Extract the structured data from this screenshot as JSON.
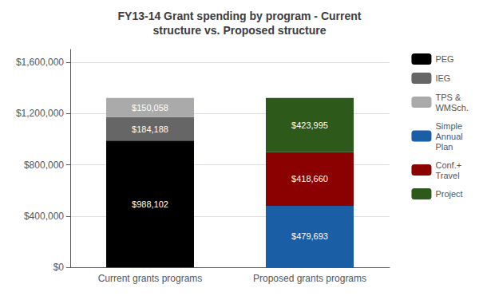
{
  "chart_data": {
    "type": "bar",
    "title": "FY13-14 Grant spending by program - Current\nstructure vs. Proposed structure",
    "categories": [
      "Current grants programs",
      "Proposed grants programs"
    ],
    "stacked": true,
    "data_labels": true,
    "grid": true,
    "legend": "upper right",
    "ylim": [
      0,
      1700000
    ],
    "yticks": [
      {
        "value": 0,
        "label": "$0"
      },
      {
        "value": 400000,
        "label": "$400,000"
      },
      {
        "value": 800000,
        "label": "$800,000"
      },
      {
        "value": 1200000,
        "label": "$1,200,000"
      },
      {
        "value": 1600000,
        "label": "$1,600,000"
      }
    ],
    "series": [
      {
        "name": "PEG",
        "color": "#000000",
        "values": [
          988102,
          0
        ],
        "value_labels": [
          "$988,102",
          null
        ]
      },
      {
        "name": "IEG",
        "color": "#666666",
        "values": [
          184188,
          0
        ],
        "value_labels": [
          "$184,188",
          null
        ]
      },
      {
        "name": "TPS &\nWMSch.",
        "color": "#aaaaaa",
        "values": [
          150058,
          0
        ],
        "value_labels": [
          "$150,058",
          null
        ]
      },
      {
        "name": "Simple\nAnnual\nPlan",
        "color": "#1a5fa6",
        "values": [
          0,
          479693
        ],
        "value_labels": [
          null,
          "$479,693"
        ]
      },
      {
        "name": "Conf.+\nTravel",
        "color": "#8b0000",
        "values": [
          0,
          418660
        ],
        "value_labels": [
          null,
          "$418,660"
        ]
      },
      {
        "name": "Project",
        "color": "#2d5a1b",
        "values": [
          0,
          423995
        ],
        "value_labels": [
          null,
          "$423,995"
        ]
      }
    ]
  }
}
